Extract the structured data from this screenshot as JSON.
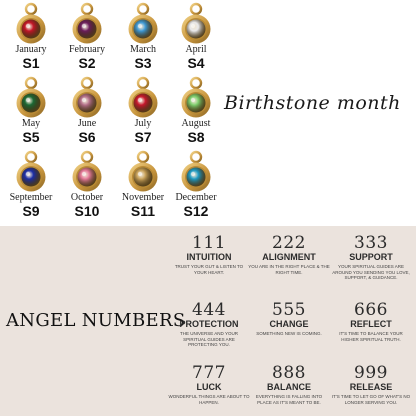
{
  "birthstones": {
    "title": "Birthstone month",
    "items": [
      {
        "month": "January",
        "code": "S1",
        "color": "#c41628"
      },
      {
        "month": "February",
        "code": "S2",
        "color": "#6b1d5c"
      },
      {
        "month": "March",
        "code": "S3",
        "color": "#3e9ad6"
      },
      {
        "month": "April",
        "code": "S4",
        "color": "#e8e8ea"
      },
      {
        "month": "May",
        "code": "S5",
        "color": "#1c6a36"
      },
      {
        "month": "June",
        "code": "S6",
        "color": "#b4708a"
      },
      {
        "month": "July",
        "code": "S7",
        "color": "#c8182d"
      },
      {
        "month": "August",
        "code": "S8",
        "color": "#7fcf6e"
      },
      {
        "month": "September",
        "code": "S9",
        "color": "#1c2ea8"
      },
      {
        "month": "October",
        "code": "S10",
        "color": "#e47a99"
      },
      {
        "month": "November",
        "code": "S11",
        "color": "#c9a25a"
      },
      {
        "month": "December",
        "code": "S12",
        "color": "#1f9bc4"
      }
    ]
  },
  "angel_numbers": {
    "title": "ANGEL NUMBERS",
    "items": [
      {
        "number": "111",
        "name": "INTUITION",
        "desc": "TRUST YOUR GUT & LISTEN TO YOUR HEART."
      },
      {
        "number": "222",
        "name": "ALIGNMENT",
        "desc": "YOU ARE IN THE RIGHT PLACE & THE RIGHT TIME."
      },
      {
        "number": "333",
        "name": "SUPPORT",
        "desc": "YOUR SPIRITUAL GUIDES ARE AROUND YOU SENDING YOU LOVE, SUPPORT, & GUIDANCE."
      },
      {
        "number": "444",
        "name": "PROTECTION",
        "desc": "THE UNIVERSE AND YOUR SPIRITUAL GUIDES ARE PROTECTING YOU."
      },
      {
        "number": "555",
        "name": "CHANGE",
        "desc": "SOMETHING NEW IS COMING."
      },
      {
        "number": "666",
        "name": "REFLECT",
        "desc": "IT'S TIME TO BALANCE YOUR HIGHER SPIRITUAL TRUTH."
      },
      {
        "number": "777",
        "name": "LUCK",
        "desc": "WONDERFUL THINGS ARE ABOUT TO HAPPEN."
      },
      {
        "number": "888",
        "name": "BALANCE",
        "desc": "EVERYTHING IS FALLING INTO PLACE AS IT'S MEANT TO BE."
      },
      {
        "number": "999",
        "name": "RELEASE",
        "desc": "IT'S TIME TO LET GO OF WHAT'S NO LONGER SERVING YOU."
      }
    ]
  },
  "colors": {
    "gold": "#c9973f",
    "gold_light": "#f3d58a",
    "angel_background": "#ebe3dd"
  }
}
